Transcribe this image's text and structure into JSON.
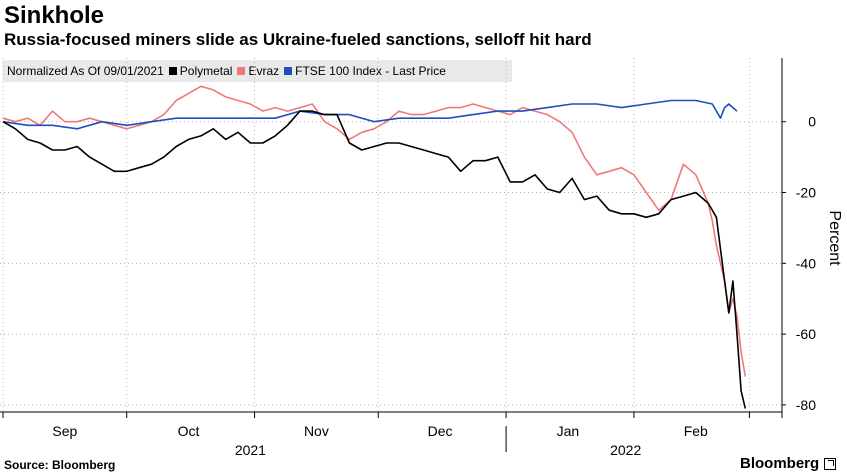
{
  "header": {
    "title": "Sinkhole",
    "subtitle": "Russia-focused miners slide as Ukraine-fueled sanctions, selloff hit hard"
  },
  "legend": {
    "note": "Normalized As Of 09/01/2021",
    "items": [
      {
        "label": "Polymetal",
        "color": "#000000"
      },
      {
        "label": "Evraz",
        "color": "#f07878"
      },
      {
        "label": "FTSE 100 Index - Last Price",
        "color": "#1f4fbf"
      }
    ]
  },
  "footer": {
    "source": "Source: Bloomberg",
    "brand": "Bloomberg"
  },
  "chart_data": {
    "type": "line",
    "title": "Sinkhole",
    "ylabel": "Percent",
    "ylim": [
      -82,
      18
    ],
    "yticks": [
      0,
      -20,
      -40,
      -60,
      -80
    ],
    "ytick_labels": [
      "0",
      "-20",
      "-40",
      "-60",
      "-80"
    ],
    "x_start": "2021-09-01",
    "x_end": "2022-03-07",
    "month_ticks": [
      {
        "label": "Sep",
        "day": 15
      },
      {
        "label": "Oct",
        "day": 45
      },
      {
        "label": "Nov",
        "day": 76
      },
      {
        "label": "Dec",
        "day": 106
      },
      {
        "label": "Jan",
        "day": 137
      },
      {
        "label": "Feb",
        "day": 168
      }
    ],
    "month_boundaries": [
      0,
      30,
      61,
      91,
      122,
      153,
      181
    ],
    "year_labels": [
      {
        "label": "2021",
        "day": 60
      },
      {
        "label": "2022",
        "day": 151
      }
    ],
    "series": [
      {
        "name": "Polymetal",
        "color": "#000000",
        "points": [
          [
            0,
            0
          ],
          [
            3,
            -2
          ],
          [
            6,
            -5
          ],
          [
            9,
            -6
          ],
          [
            12,
            -8
          ],
          [
            15,
            -8
          ],
          [
            18,
            -7
          ],
          [
            21,
            -10
          ],
          [
            24,
            -12
          ],
          [
            27,
            -14
          ],
          [
            30,
            -14
          ],
          [
            33,
            -13
          ],
          [
            36,
            -12
          ],
          [
            39,
            -10
          ],
          [
            42,
            -7
          ],
          [
            45,
            -5
          ],
          [
            48,
            -4
          ],
          [
            51,
            -2
          ],
          [
            54,
            -5
          ],
          [
            57,
            -3
          ],
          [
            60,
            -6
          ],
          [
            63,
            -6
          ],
          [
            66,
            -4
          ],
          [
            69,
            -1
          ],
          [
            72,
            3
          ],
          [
            75,
            3
          ],
          [
            78,
            2
          ],
          [
            81,
            2
          ],
          [
            84,
            -6
          ],
          [
            87,
            -8
          ],
          [
            90,
            -7
          ],
          [
            93,
            -6
          ],
          [
            96,
            -6
          ],
          [
            99,
            -7
          ],
          [
            102,
            -8
          ],
          [
            105,
            -9
          ],
          [
            108,
            -10
          ],
          [
            111,
            -14
          ],
          [
            114,
            -11
          ],
          [
            117,
            -11
          ],
          [
            120,
            -10
          ],
          [
            123,
            -17
          ],
          [
            126,
            -17
          ],
          [
            129,
            -15
          ],
          [
            132,
            -19
          ],
          [
            135,
            -20
          ],
          [
            138,
            -16
          ],
          [
            141,
            -22
          ],
          [
            144,
            -21
          ],
          [
            147,
            -25
          ],
          [
            150,
            -26
          ],
          [
            153,
            -26
          ],
          [
            156,
            -27
          ],
          [
            159,
            -26
          ],
          [
            162,
            -22
          ],
          [
            165,
            -21
          ],
          [
            168,
            -20
          ],
          [
            171,
            -23
          ],
          [
            172,
            -25
          ],
          [
            173,
            -27
          ],
          [
            175,
            -45
          ],
          [
            176,
            -54
          ],
          [
            177,
            -45
          ],
          [
            178,
            -60
          ],
          [
            179,
            -76
          ],
          [
            180,
            -81
          ]
        ]
      },
      {
        "name": "Evraz",
        "color": "#f07878",
        "points": [
          [
            0,
            1
          ],
          [
            3,
            0
          ],
          [
            6,
            1
          ],
          [
            9,
            -1
          ],
          [
            12,
            3
          ],
          [
            15,
            0
          ],
          [
            18,
            0
          ],
          [
            21,
            1
          ],
          [
            24,
            0
          ],
          [
            27,
            -1
          ],
          [
            30,
            -2
          ],
          [
            33,
            -1
          ],
          [
            36,
            0
          ],
          [
            39,
            2
          ],
          [
            42,
            6
          ],
          [
            45,
            8
          ],
          [
            48,
            10
          ],
          [
            51,
            9
          ],
          [
            54,
            7
          ],
          [
            57,
            6
          ],
          [
            60,
            5
          ],
          [
            63,
            3
          ],
          [
            66,
            4
          ],
          [
            69,
            3
          ],
          [
            72,
            4
          ],
          [
            75,
            5
          ],
          [
            78,
            0
          ],
          [
            81,
            -2
          ],
          [
            84,
            -5
          ],
          [
            87,
            -3
          ],
          [
            90,
            -2
          ],
          [
            93,
            0
          ],
          [
            96,
            3
          ],
          [
            99,
            2
          ],
          [
            102,
            2
          ],
          [
            105,
            3
          ],
          [
            108,
            4
          ],
          [
            111,
            4
          ],
          [
            114,
            5
          ],
          [
            117,
            4
          ],
          [
            120,
            3
          ],
          [
            123,
            2
          ],
          [
            126,
            4
          ],
          [
            129,
            3
          ],
          [
            132,
            2
          ],
          [
            135,
            0
          ],
          [
            138,
            -3
          ],
          [
            141,
            -10
          ],
          [
            144,
            -15
          ],
          [
            147,
            -14
          ],
          [
            150,
            -13
          ],
          [
            153,
            -15
          ],
          [
            156,
            -20
          ],
          [
            159,
            -25
          ],
          [
            162,
            -22
          ],
          [
            165,
            -12
          ],
          [
            168,
            -15
          ],
          [
            171,
            -23
          ],
          [
            172,
            -28
          ],
          [
            173,
            -35
          ],
          [
            175,
            -45
          ],
          [
            176,
            -54
          ],
          [
            177,
            -50
          ],
          [
            178,
            -55
          ],
          [
            179,
            -65
          ],
          [
            180,
            -72
          ]
        ]
      },
      {
        "name": "FTSE 100 Index - Last Price",
        "color": "#1f4fbf",
        "points": [
          [
            0,
            0
          ],
          [
            6,
            -1
          ],
          [
            12,
            -1
          ],
          [
            18,
            -2
          ],
          [
            24,
            0
          ],
          [
            30,
            -1
          ],
          [
            36,
            0
          ],
          [
            42,
            1
          ],
          [
            48,
            1
          ],
          [
            54,
            1
          ],
          [
            60,
            1
          ],
          [
            66,
            1
          ],
          [
            72,
            3
          ],
          [
            78,
            2
          ],
          [
            84,
            2
          ],
          [
            90,
            0
          ],
          [
            96,
            1
          ],
          [
            102,
            1
          ],
          [
            108,
            1
          ],
          [
            114,
            2
          ],
          [
            120,
            3
          ],
          [
            126,
            3
          ],
          [
            132,
            4
          ],
          [
            138,
            5
          ],
          [
            144,
            5
          ],
          [
            150,
            4
          ],
          [
            156,
            5
          ],
          [
            162,
            6
          ],
          [
            168,
            6
          ],
          [
            172,
            5
          ],
          [
            174,
            1
          ],
          [
            175,
            4
          ],
          [
            176,
            5
          ],
          [
            177,
            4
          ],
          [
            178,
            3
          ]
        ]
      }
    ]
  }
}
